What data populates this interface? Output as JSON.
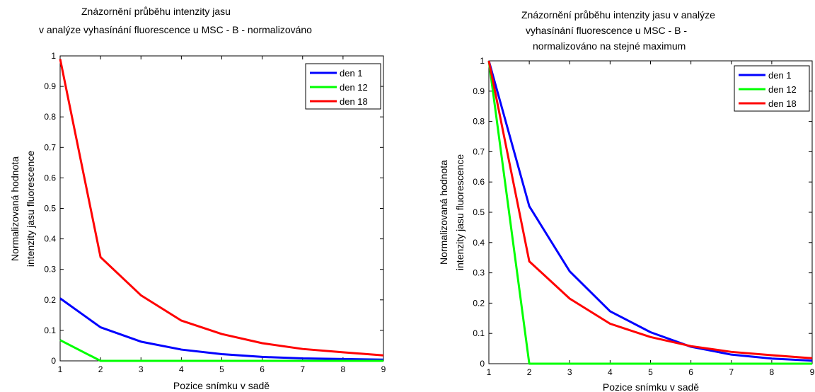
{
  "chart_data": [
    {
      "type": "line",
      "title": [
        "Znázornění průběhu intenzity jasu",
        "v analýze vyhasínání fluorescence u MSC - B - normalizováno"
      ],
      "xlabel": "Pozice snímku v sadě",
      "ylabel": [
        "Normalizovaná hodnota",
        "intenzity jasu fluorescence"
      ],
      "xlim": [
        1,
        9
      ],
      "ylim": [
        0,
        1
      ],
      "xticks": [
        "1",
        "2",
        "3",
        "4",
        "5",
        "6",
        "7",
        "8",
        "9"
      ],
      "yticks": [
        "0",
        "0.1",
        "0.2",
        "0.3",
        "0.4",
        "0.5",
        "0.6",
        "0.7",
        "0.8",
        "0.9",
        "1"
      ],
      "grid": false,
      "legend_position": "top-right",
      "x": [
        1,
        2,
        3,
        4,
        5,
        6,
        7,
        8,
        9
      ],
      "series": [
        {
          "name": "den 1",
          "color": "#0000ff",
          "values": [
            0.205,
            0.11,
            0.063,
            0.037,
            0.022,
            0.013,
            0.008,
            0.006,
            0.004
          ]
        },
        {
          "name": "den 12",
          "color": "#00ff00",
          "values": [
            0.068,
            0.0,
            0.0,
            0.0,
            0.0,
            0.0,
            0.0,
            0.0,
            0.0
          ]
        },
        {
          "name": "den 18",
          "color": "#ff0000",
          "values": [
            0.99,
            0.34,
            0.215,
            0.132,
            0.088,
            0.058,
            0.039,
            0.028,
            0.018
          ]
        }
      ]
    },
    {
      "type": "line",
      "title": [
        "Znázornění průběhu intenzity jasu v analýze",
        "vyhasínání fluorescence u MSC - B -",
        "normalizováno na stejné maximum"
      ],
      "xlabel": "Pozice snímku v sadě",
      "ylabel": [
        "Normalizovaná hodnota",
        "intenzity jasu fluorescence"
      ],
      "xlim": [
        1,
        9
      ],
      "ylim": [
        0,
        1
      ],
      "xticks": [
        "1",
        "2",
        "3",
        "4",
        "5",
        "6",
        "7",
        "8",
        "9"
      ],
      "yticks": [
        "0",
        "0.1",
        "0.2",
        "0.3",
        "0.4",
        "0.5",
        "0.6",
        "0.7",
        "0.8",
        "0.9",
        "1"
      ],
      "grid": false,
      "legend_position": "top-right",
      "x": [
        1,
        2,
        3,
        4,
        5,
        6,
        7,
        8,
        9
      ],
      "series": [
        {
          "name": "den 1",
          "color": "#0000ff",
          "values": [
            1.0,
            0.52,
            0.305,
            0.173,
            0.104,
            0.056,
            0.03,
            0.017,
            0.01
          ]
        },
        {
          "name": "den 12",
          "color": "#00ff00",
          "values": [
            1.0,
            0.0,
            0.0,
            0.0,
            0.0,
            0.0,
            0.0,
            0.0,
            0.0
          ]
        },
        {
          "name": "den 18",
          "color": "#ff0000",
          "values": [
            1.0,
            0.338,
            0.215,
            0.132,
            0.088,
            0.058,
            0.039,
            0.028,
            0.018
          ]
        }
      ]
    }
  ]
}
